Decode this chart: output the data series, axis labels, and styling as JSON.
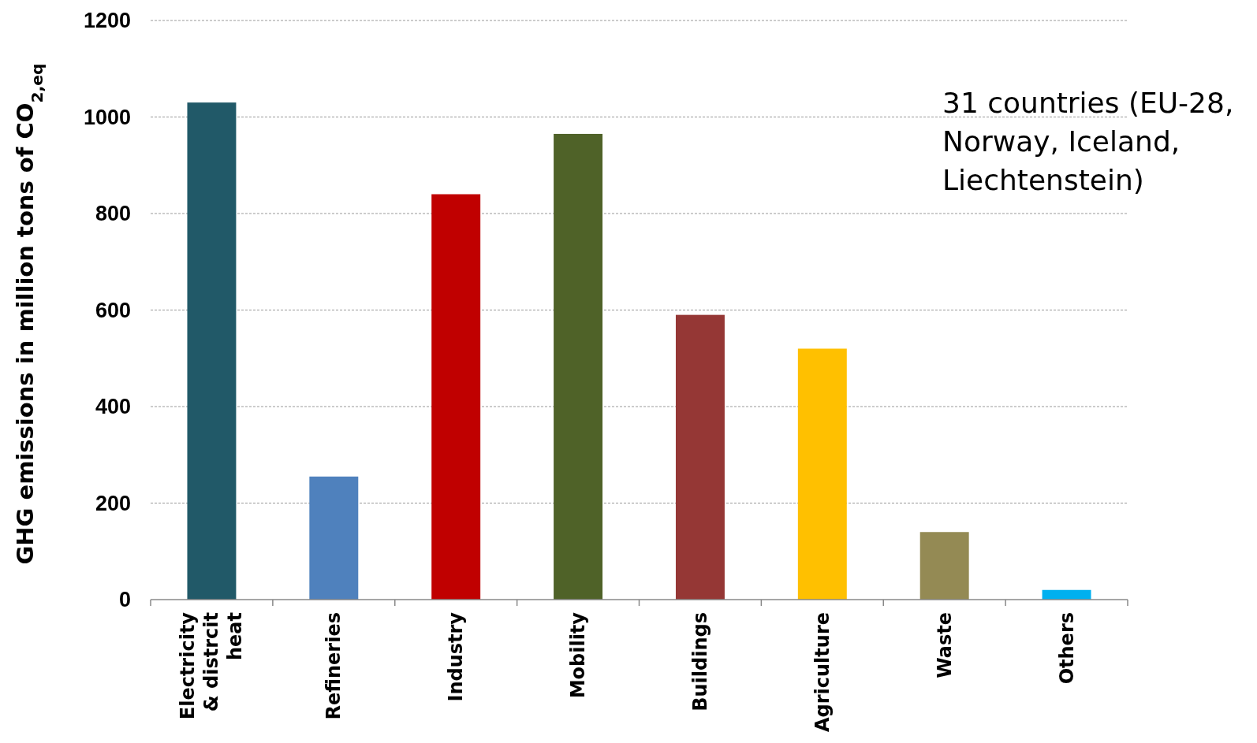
{
  "chart_data": {
    "type": "bar",
    "ylabel": "GHG emissions in million tons of CO$_{2,eq}$",
    "categories": [
      "Electricity & distrcit heat",
      "Refineries",
      "Industry",
      "Mobility",
      "Buildings",
      "Agriculture",
      "Waste",
      "Others"
    ],
    "values": [
      1030,
      255,
      840,
      965,
      590,
      520,
      140,
      20
    ],
    "colors": [
      "#215968",
      "#4f81bd",
      "#c00000",
      "#4f6228",
      "#953735",
      "#ffc000",
      "#948a54",
      "#00b0f0"
    ],
    "ylim": [
      0,
      1200
    ],
    "yticks": [
      0,
      200,
      400,
      600,
      800,
      1000,
      1200
    ],
    "grid": "y",
    "annotations": [
      "31 countries (EU-28, Norway, Iceland, Liechtenstein)"
    ]
  }
}
